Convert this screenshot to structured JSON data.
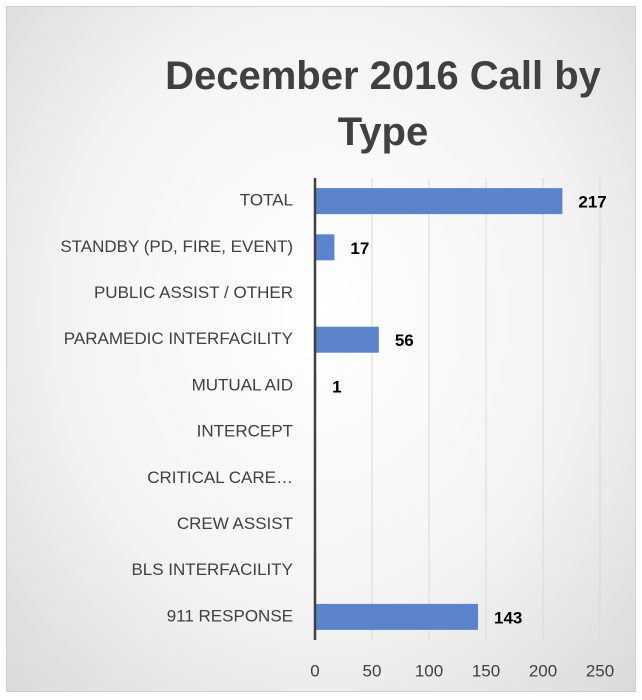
{
  "chart_data": {
    "type": "bar",
    "orientation": "horizontal",
    "title": "December 2016 Call by Type",
    "categories": [
      "TOTAL",
      "STANDBY (PD, FIRE, EVENT)",
      "PUBLIC ASSIST / OTHER",
      "PARAMEDIC INTERFACILITY",
      "MUTUAL AID",
      "INTERCEPT",
      "CRITICAL CARE…",
      "CREW ASSIST",
      "BLS INTERFACILITY",
      "911 RESPONSE"
    ],
    "values": [
      217,
      17,
      null,
      56,
      1,
      null,
      null,
      null,
      null,
      143
    ],
    "color": "#5b84cc",
    "xlim": [
      0,
      250
    ],
    "xticks": [
      0,
      50,
      100,
      150,
      200,
      250
    ],
    "grid": true
  }
}
